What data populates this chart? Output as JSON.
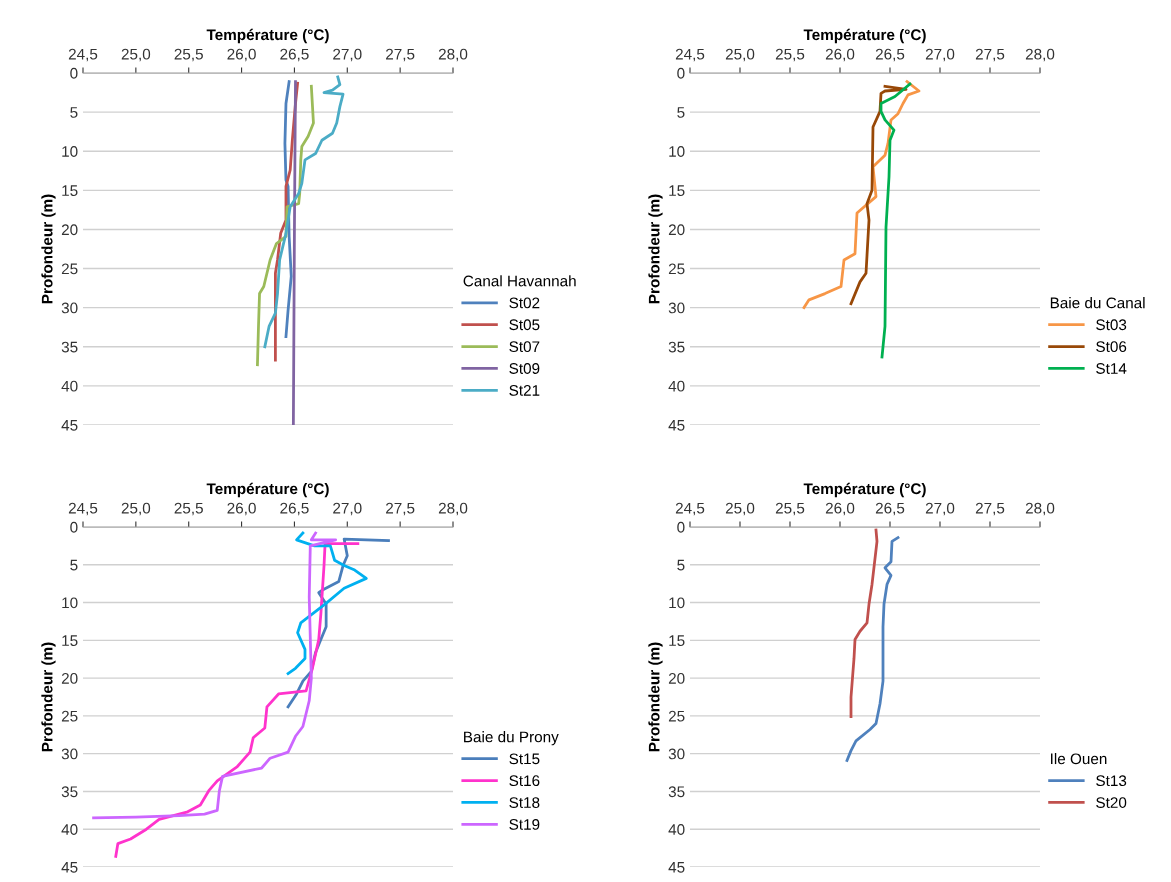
{
  "chart_data": [
    {
      "type": "line",
      "xlabel": "Température (°C)",
      "ylabel": "Profondeur (m)",
      "legend_title": "Canal Havannah",
      "xlim": [
        24.5,
        28.0
      ],
      "xticks": [
        {
          "value": 24.5,
          "label": "24,5"
        },
        {
          "value": 25.0,
          "label": "25,0"
        },
        {
          "value": 25.5,
          "label": "25,5"
        },
        {
          "value": 26.0,
          "label": "26,0"
        },
        {
          "value": 26.5,
          "label": "26,5"
        },
        {
          "value": 27.0,
          "label": "27,0"
        },
        {
          "value": 27.5,
          "label": "27,5"
        },
        {
          "value": 28.0,
          "label": "28,0"
        }
      ],
      "ylim": [
        45,
        0
      ],
      "yticks": [
        0,
        5,
        10,
        15,
        20,
        25,
        30,
        35,
        40,
        45
      ],
      "grid": "y",
      "legend": "right",
      "series": [
        {
          "name": "St02",
          "color": "#4f81bd",
          "x": [
            26.45,
            26.42,
            26.41,
            26.42,
            26.44,
            26.45,
            26.47,
            26.44,
            26.42
          ],
          "values": [
            1.1,
            3.9,
            9.0,
            13.7,
            14.5,
            20.9,
            26.0,
            30.3,
            33.7
          ]
        },
        {
          "name": "St05",
          "color": "#c0504d",
          "x": [
            26.53,
            26.51,
            26.48,
            26.46,
            26.42,
            26.42,
            26.37,
            26.34,
            26.32,
            26.32
          ],
          "values": [
            1.3,
            3.9,
            8.6,
            12.4,
            14.5,
            18.8,
            20.5,
            23.9,
            25.6,
            36.7
          ]
        },
        {
          "name": "St07",
          "color": "#9bbb59",
          "x": [
            26.66,
            26.68,
            26.63,
            26.57,
            26.56,
            26.55,
            26.54,
            26.43,
            26.42,
            26.33,
            26.27,
            26.21,
            26.17,
            26.16,
            26.15
          ],
          "values": [
            1.7,
            6.4,
            8.1,
            9.4,
            11.1,
            15.4,
            16.7,
            17.1,
            20.9,
            21.8,
            23.9,
            27.3,
            28.2,
            32.4,
            37.3
          ]
        },
        {
          "name": "St09",
          "color": "#8064a2",
          "x": [
            26.51,
            26.5,
            26.49
          ],
          "values": [
            1.1,
            20.0,
            45.0
          ]
        },
        {
          "name": "St21",
          "color": "#4bacc6",
          "x": [
            26.91,
            26.93,
            26.86,
            26.78,
            26.96,
            26.93,
            26.9,
            26.86,
            26.76,
            26.7,
            26.6,
            26.57,
            26.54,
            26.46,
            26.42,
            26.36,
            26.34,
            26.32,
            26.26,
            26.22
          ],
          "values": [
            0.5,
            1.5,
            2.2,
            2.5,
            2.7,
            4.3,
            6.4,
            7.7,
            8.6,
            10.3,
            11.1,
            14.1,
            15.4,
            17.1,
            20.5,
            23.9,
            28.2,
            30.7,
            32.4,
            35.0
          ]
        }
      ]
    },
    {
      "type": "line",
      "xlabel": "Température (°C)",
      "ylabel": "Profondeur (m)",
      "legend_title": "Baie du Canal",
      "xlim": [
        24.5,
        28.0
      ],
      "xticks": [
        {
          "value": 24.5,
          "label": "24,5"
        },
        {
          "value": 25.0,
          "label": "25,0"
        },
        {
          "value": 25.5,
          "label": "25,5"
        },
        {
          "value": 26.0,
          "label": "26,0"
        },
        {
          "value": 26.5,
          "label": "26,5"
        },
        {
          "value": 27.0,
          "label": "27,0"
        },
        {
          "value": 27.5,
          "label": "27,5"
        },
        {
          "value": 28.0,
          "label": "28,0"
        }
      ],
      "ylim": [
        45,
        0
      ],
      "yticks": [
        0,
        5,
        10,
        15,
        20,
        25,
        30,
        35,
        40,
        45
      ],
      "grid": "y",
      "legend": "right",
      "series": [
        {
          "name": "St03",
          "color": "#f79646",
          "x": [
            26.67,
            26.79,
            26.68,
            26.63,
            26.58,
            26.51,
            26.48,
            26.45,
            26.33,
            26.36,
            26.17,
            26.15,
            26.04,
            26.01,
            25.85,
            25.69,
            25.64
          ],
          "values": [
            1.1,
            2.3,
            2.8,
            3.9,
            5.2,
            6.0,
            9.0,
            10.5,
            12.0,
            15.8,
            17.9,
            23.1,
            23.9,
            27.3,
            28.2,
            29.0,
            30.0
          ]
        },
        {
          "name": "St06",
          "color": "#984807",
          "x": [
            26.45,
            26.66,
            26.45,
            26.41,
            26.4,
            26.33,
            26.32,
            26.27,
            26.29,
            26.26,
            26.2,
            26.11
          ],
          "values": [
            1.7,
            2.1,
            2.3,
            2.6,
            4.9,
            6.9,
            15.0,
            16.7,
            18.8,
            25.6,
            26.7,
            29.5
          ]
        },
        {
          "name": "St14",
          "color": "#00b050",
          "x": [
            26.7,
            26.55,
            26.41,
            26.41,
            26.45,
            26.54,
            26.5,
            26.49,
            26.46,
            26.45,
            26.42
          ],
          "values": [
            1.4,
            3.0,
            3.9,
            4.9,
            6.0,
            7.3,
            8.6,
            13.3,
            19.7,
            32.4,
            36.3
          ]
        }
      ]
    },
    {
      "type": "line",
      "xlabel": "Température (°C)",
      "ylabel": "Profondeur (m)",
      "legend_title": "Baie du Prony",
      "xlim": [
        24.5,
        28.0
      ],
      "xticks": [
        {
          "value": 24.5,
          "label": "24,5"
        },
        {
          "value": 25.0,
          "label": "25,0"
        },
        {
          "value": 25.5,
          "label": "25,5"
        },
        {
          "value": 26.0,
          "label": "26,0"
        },
        {
          "value": 26.5,
          "label": "26,5"
        },
        {
          "value": 27.0,
          "label": "27,0"
        },
        {
          "value": 27.5,
          "label": "27,5"
        },
        {
          "value": 28.0,
          "label": "28,0"
        }
      ],
      "ylim": [
        45,
        0
      ],
      "yticks": [
        0,
        5,
        10,
        15,
        20,
        25,
        30,
        35,
        40,
        45
      ],
      "grid": "y",
      "legend": "right",
      "series": [
        {
          "name": "St15",
          "color": "#4a7ebb",
          "x": [
            27.39,
            26.97,
            27.0,
            26.96,
            26.92,
            26.77,
            26.73,
            26.8,
            26.8,
            26.75,
            26.7,
            26.66,
            26.58,
            26.52,
            26.44
          ],
          "values": [
            1.8,
            1.6,
            3.8,
            5.1,
            7.2,
            8.3,
            8.7,
            10.2,
            13.2,
            14.9,
            16.6,
            19.1,
            20.4,
            22.1,
            23.8
          ]
        },
        {
          "name": "St16",
          "color": "#ff33cc",
          "x": [
            27.1,
            26.79,
            26.78,
            26.75,
            26.73,
            26.67,
            26.61,
            26.35,
            26.24,
            26.22,
            26.11,
            26.08,
            25.96,
            25.77,
            25.69,
            25.61,
            25.49,
            25.22,
            25.1,
            24.95,
            24.83,
            24.81
          ],
          "values": [
            2.2,
            2.2,
            5.1,
            11.5,
            14.9,
            18.7,
            21.7,
            22.1,
            23.8,
            26.6,
            27.9,
            29.8,
            31.7,
            33.6,
            34.9,
            36.8,
            37.7,
            38.7,
            40.0,
            41.3,
            41.9,
            43.6
          ]
        },
        {
          "name": "St18",
          "color": "#00b0f0",
          "x": [
            26.58,
            26.52,
            26.69,
            26.84,
            26.88,
            26.97,
            27.07,
            27.18,
            26.97,
            26.79,
            26.56,
            26.53,
            26.6,
            26.6,
            26.51,
            26.44
          ],
          "values": [
            0.8,
            1.7,
            2.5,
            2.5,
            4.4,
            5.1,
            5.7,
            6.8,
            8.1,
            10.2,
            12.7,
            14.0,
            16.2,
            17.4,
            18.7,
            19.4
          ]
        },
        {
          "name": "St19",
          "color": "#cc66ff",
          "x": [
            26.7,
            26.66,
            26.89,
            26.65,
            26.64,
            26.66,
            26.64,
            26.58,
            26.51,
            26.44,
            26.27,
            26.19,
            25.82,
            25.79,
            25.77,
            25.65,
            25.41,
            25.0,
            24.6
          ],
          "values": [
            0.8,
            1.7,
            1.7,
            2.5,
            9.3,
            20.0,
            23.0,
            26.4,
            27.7,
            29.8,
            30.6,
            31.9,
            33.0,
            34.9,
            37.5,
            38.0,
            38.2,
            38.4,
            38.5
          ]
        }
      ]
    },
    {
      "type": "line",
      "xlabel": "Température (°C)",
      "ylabel": "Profondeur (m)",
      "legend_title": "Ile Ouen",
      "xlim": [
        24.5,
        28.0
      ],
      "xticks": [
        {
          "value": 24.5,
          "label": "24,5"
        },
        {
          "value": 25.0,
          "label": "25,0"
        },
        {
          "value": 25.5,
          "label": "25,5"
        },
        {
          "value": 26.0,
          "label": "26,0"
        },
        {
          "value": 26.5,
          "label": "26,5"
        },
        {
          "value": 27.0,
          "label": "27,0"
        },
        {
          "value": 27.5,
          "label": "27,5"
        },
        {
          "value": 28.0,
          "label": "28,0"
        }
      ],
      "ylim": [
        45,
        0
      ],
      "yticks": [
        0,
        5,
        10,
        15,
        20,
        25,
        30,
        35,
        40,
        45
      ],
      "grid": "y",
      "legend": "right",
      "series": [
        {
          "name": "St13",
          "color": "#4f81bd",
          "x": [
            26.58,
            26.52,
            26.51,
            26.45,
            26.51,
            26.47,
            26.44,
            26.43,
            26.43,
            26.4,
            26.36,
            26.3,
            26.16,
            26.11,
            26.07
          ],
          "values": [
            1.4,
            1.9,
            4.6,
            5.4,
            6.4,
            7.6,
            10.2,
            13.2,
            20.4,
            23.4,
            26.0,
            26.8,
            28.3,
            29.6,
            30.9
          ]
        },
        {
          "name": "St20",
          "color": "#c0504d",
          "x": [
            26.36,
            26.37,
            26.32,
            26.29,
            26.27,
            26.2,
            26.15,
            26.14,
            26.11,
            26.11
          ],
          "values": [
            0.4,
            1.9,
            7.6,
            10.2,
            12.7,
            13.8,
            14.9,
            17.4,
            22.5,
            25.1
          ]
        }
      ]
    }
  ]
}
